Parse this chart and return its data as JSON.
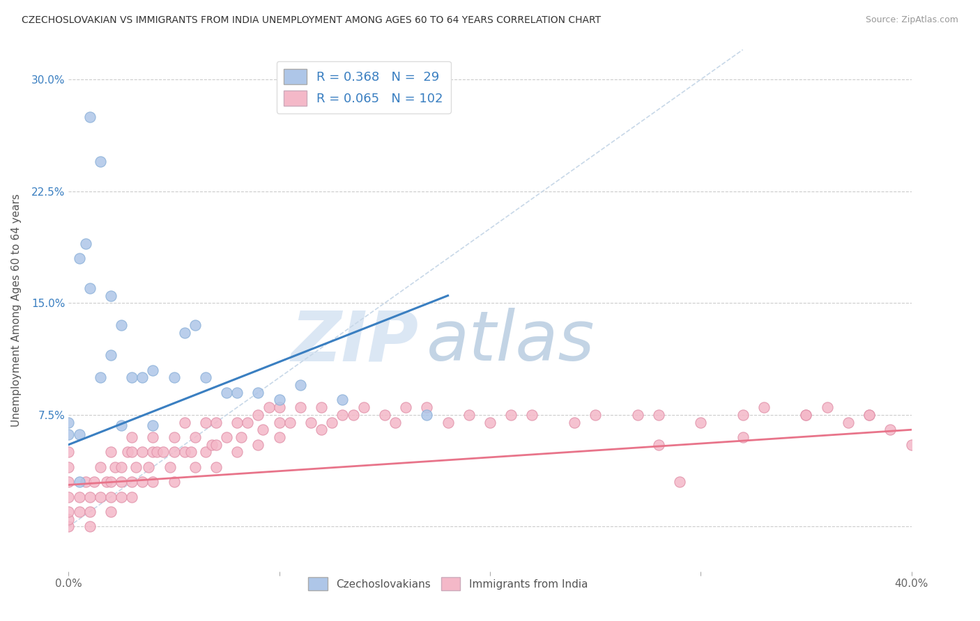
{
  "title": "CZECHOSLOVAKIAN VS IMMIGRANTS FROM INDIA UNEMPLOYMENT AMONG AGES 60 TO 64 YEARS CORRELATION CHART",
  "source": "Source: ZipAtlas.com",
  "ylabel": "Unemployment Among Ages 60 to 64 years",
  "xlim": [
    0.0,
    0.4
  ],
  "ylim": [
    -0.03,
    0.32
  ],
  "ytick_positions": [
    0.0,
    0.075,
    0.15,
    0.225,
    0.3
  ],
  "ytick_labels": [
    "",
    "7.5%",
    "15.0%",
    "22.5%",
    "30.0%"
  ],
  "blue_color": "#3a7fc1",
  "blue_scatter_color": "#aec6e8",
  "blue_scatter_edge": "#8ab0d8",
  "pink_color": "#e8748a",
  "pink_scatter_color": "#f4b8c8",
  "pink_scatter_edge": "#e090a8",
  "grid_color": "#cccccc",
  "background_color": "#ffffff",
  "watermark_zip": "ZIP",
  "watermark_atlas": "atlas",
  "diag_line_color": "#c8d8e8",
  "blue_line_x": [
    0.0,
    0.18
  ],
  "blue_line_y": [
    0.055,
    0.155
  ],
  "pink_line_x": [
    0.0,
    0.4
  ],
  "pink_line_y": [
    0.028,
    0.065
  ],
  "blue_points_x": [
    0.01,
    0.015,
    0.008,
    0.005,
    0.01,
    0.02,
    0.025,
    0.02,
    0.015,
    0.03,
    0.035,
    0.04,
    0.05,
    0.055,
    0.06,
    0.065,
    0.075,
    0.08,
    0.09,
    0.1,
    0.11,
    0.13,
    0.17,
    0.0,
    0.0,
    0.005,
    0.025,
    0.04,
    0.005
  ],
  "blue_points_y": [
    0.275,
    0.245,
    0.19,
    0.18,
    0.16,
    0.155,
    0.135,
    0.115,
    0.1,
    0.1,
    0.1,
    0.105,
    0.1,
    0.13,
    0.135,
    0.1,
    0.09,
    0.09,
    0.09,
    0.085,
    0.095,
    0.085,
    0.075,
    0.07,
    0.062,
    0.062,
    0.068,
    0.068,
    0.03
  ],
  "pink_points_x": [
    0.0,
    0.0,
    0.0,
    0.0,
    0.0,
    0.0,
    0.0,
    0.005,
    0.005,
    0.008,
    0.01,
    0.01,
    0.01,
    0.012,
    0.015,
    0.015,
    0.018,
    0.02,
    0.02,
    0.02,
    0.02,
    0.022,
    0.025,
    0.025,
    0.025,
    0.028,
    0.03,
    0.03,
    0.03,
    0.03,
    0.032,
    0.035,
    0.035,
    0.038,
    0.04,
    0.04,
    0.04,
    0.042,
    0.045,
    0.048,
    0.05,
    0.05,
    0.05,
    0.055,
    0.055,
    0.058,
    0.06,
    0.06,
    0.065,
    0.065,
    0.068,
    0.07,
    0.07,
    0.07,
    0.075,
    0.08,
    0.08,
    0.082,
    0.085,
    0.09,
    0.09,
    0.092,
    0.095,
    0.1,
    0.1,
    0.1,
    0.105,
    0.11,
    0.115,
    0.12,
    0.12,
    0.125,
    0.13,
    0.135,
    0.14,
    0.15,
    0.155,
    0.16,
    0.17,
    0.18,
    0.19,
    0.2,
    0.21,
    0.22,
    0.24,
    0.25,
    0.27,
    0.28,
    0.28,
    0.3,
    0.32,
    0.33,
    0.35,
    0.36,
    0.37,
    0.38,
    0.39,
    0.4,
    0.38,
    0.35,
    0.32,
    0.29
  ],
  "pink_points_y": [
    0.0,
    0.005,
    0.01,
    0.02,
    0.03,
    0.04,
    0.05,
    0.01,
    0.02,
    0.03,
    0.0,
    0.01,
    0.02,
    0.03,
    0.02,
    0.04,
    0.03,
    0.01,
    0.02,
    0.03,
    0.05,
    0.04,
    0.02,
    0.03,
    0.04,
    0.05,
    0.02,
    0.03,
    0.05,
    0.06,
    0.04,
    0.03,
    0.05,
    0.04,
    0.03,
    0.05,
    0.06,
    0.05,
    0.05,
    0.04,
    0.03,
    0.05,
    0.06,
    0.05,
    0.07,
    0.05,
    0.04,
    0.06,
    0.05,
    0.07,
    0.055,
    0.04,
    0.055,
    0.07,
    0.06,
    0.05,
    0.07,
    0.06,
    0.07,
    0.055,
    0.075,
    0.065,
    0.08,
    0.06,
    0.07,
    0.08,
    0.07,
    0.08,
    0.07,
    0.065,
    0.08,
    0.07,
    0.075,
    0.075,
    0.08,
    0.075,
    0.07,
    0.08,
    0.08,
    0.07,
    0.075,
    0.07,
    0.075,
    0.075,
    0.07,
    0.075,
    0.075,
    0.055,
    0.075,
    0.07,
    0.075,
    0.08,
    0.075,
    0.08,
    0.07,
    0.075,
    0.065,
    0.055,
    0.075,
    0.075,
    0.06,
    0.03
  ]
}
